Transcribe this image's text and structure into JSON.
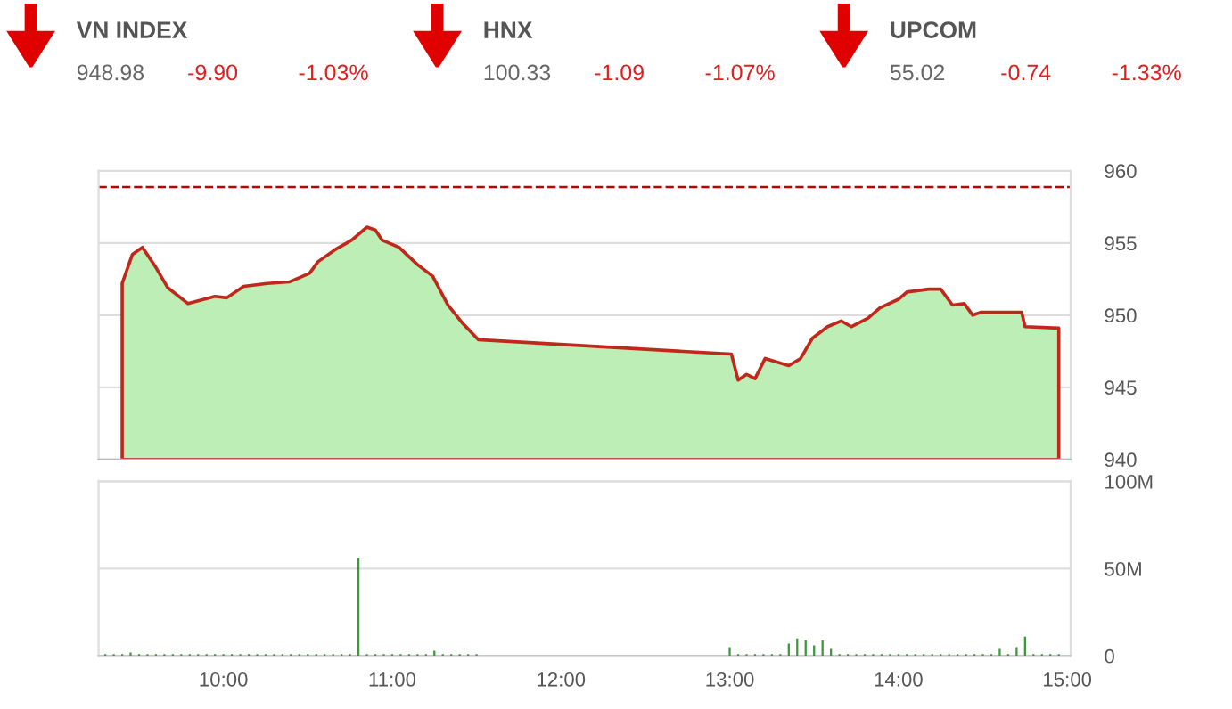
{
  "chart_data": [
    {
      "type": "area",
      "annotations": [
        "VN INDEX",
        "948.98",
        "-9.90",
        "-1.03%",
        "HNX",
        "100.33",
        "-1.09",
        "-1.07%",
        "UPCOM",
        "55.02",
        "-0.74",
        "-1.33%"
      ],
      "xlim": [
        9.26,
        15.02
      ],
      "ylim": [
        940,
        960
      ],
      "yticks": [
        940,
        945,
        950,
        955,
        960
      ],
      "tick_labels": "y",
      "grid": "y",
      "ref_lines": [
        {
          "axis": "y",
          "value": 958.88,
          "color": "#c00000",
          "line_style": "dashed"
        }
      ],
      "series": [
        {
          "color": "#bdeeb5",
          "x": [
            9.4,
            9.46,
            9.52,
            9.6,
            9.67,
            9.79,
            9.95,
            10.02,
            10.12,
            10.26,
            10.39,
            10.51,
            10.56,
            10.67,
            10.76,
            10.85,
            10.9,
            10.94,
            11.04,
            11.15,
            11.24,
            11.33,
            11.42,
            11.51,
            13.01,
            13.05,
            13.1,
            13.15,
            13.21,
            13.35,
            13.42,
            13.49,
            13.58,
            13.66,
            13.72,
            13.82,
            13.89,
            14.0,
            14.05,
            14.18,
            14.25,
            14.32,
            14.39,
            14.44,
            14.49,
            14.73,
            14.75,
            14.95
          ],
          "values": [
            952.2,
            954.2,
            954.7,
            953.3,
            951.9,
            950.8,
            951.3,
            951.2,
            952.0,
            952.2,
            952.3,
            952.9,
            953.7,
            954.6,
            955.2,
            956.1,
            955.9,
            955.2,
            954.7,
            953.5,
            952.7,
            950.7,
            949.4,
            948.3,
            947.3,
            945.5,
            945.9,
            945.6,
            947.0,
            946.5,
            947.0,
            948.4,
            949.2,
            949.6,
            949.2,
            949.8,
            950.5,
            951.1,
            951.6,
            951.8,
            951.8,
            950.7,
            950.8,
            950.0,
            950.2,
            950.2,
            949.2,
            949.1
          ]
        }
      ]
    },
    {
      "type": "bar",
      "xlim": [
        9.26,
        15.02
      ],
      "ylim": [
        0,
        100
      ],
      "xticks": [
        {
          "value": 10,
          "label": "10:00"
        },
        {
          "value": 11,
          "label": "11:00"
        },
        {
          "value": 12,
          "label": "12:00"
        },
        {
          "value": 13,
          "label": "13:00"
        },
        {
          "value": 14,
          "label": "14:00"
        },
        {
          "value": 15,
          "label": "15:00"
        }
      ],
      "yticks": [
        {
          "value": 0,
          "label": "0"
        },
        {
          "value": 50,
          "label": "50M"
        },
        {
          "value": 100,
          "label": "100M"
        }
      ],
      "grid": "y",
      "series": [
        {
          "color": "#3a9a3a",
          "x": [
            9.3,
            9.35,
            9.4,
            9.45,
            9.5,
            9.55,
            9.6,
            9.65,
            9.7,
            9.75,
            9.8,
            9.85,
            9.9,
            9.95,
            10.0,
            10.05,
            10.1,
            10.15,
            10.2,
            10.25,
            10.3,
            10.35,
            10.4,
            10.45,
            10.5,
            10.55,
            10.6,
            10.65,
            10.7,
            10.75,
            10.8,
            10.85,
            10.9,
            10.95,
            11.0,
            11.05,
            11.1,
            11.15,
            11.2,
            11.25,
            11.3,
            11.35,
            11.4,
            11.45,
            11.5,
            13.0,
            13.05,
            13.1,
            13.15,
            13.2,
            13.25,
            13.3,
            13.35,
            13.4,
            13.45,
            13.5,
            13.55,
            13.6,
            13.65,
            13.7,
            13.75,
            13.8,
            13.85,
            13.9,
            13.95,
            14.0,
            14.05,
            14.1,
            14.15,
            14.2,
            14.25,
            14.3,
            14.35,
            14.4,
            14.45,
            14.5,
            14.55,
            14.6,
            14.65,
            14.7,
            14.75,
            14.8,
            14.85,
            14.9,
            14.95
          ],
          "values": [
            1,
            1,
            1,
            2,
            1,
            1,
            1,
            1,
            1,
            1,
            1,
            1,
            1,
            1,
            1,
            1,
            1,
            1,
            1,
            1,
            1,
            1,
            1,
            1,
            1,
            1,
            1,
            1,
            1,
            1,
            56,
            1,
            1,
            1,
            1,
            1,
            1,
            1,
            1,
            3,
            1,
            1,
            1,
            1,
            1,
            5,
            1,
            1,
            1,
            1,
            1,
            1,
            7,
            10,
            9,
            6,
            9,
            4,
            1,
            1,
            1,
            1,
            1,
            1,
            1,
            1,
            1,
            1,
            1,
            1,
            1,
            1,
            1,
            1,
            1,
            1,
            1,
            4,
            1,
            5,
            11,
            1,
            1,
            1,
            1
          ]
        }
      ]
    }
  ]
}
